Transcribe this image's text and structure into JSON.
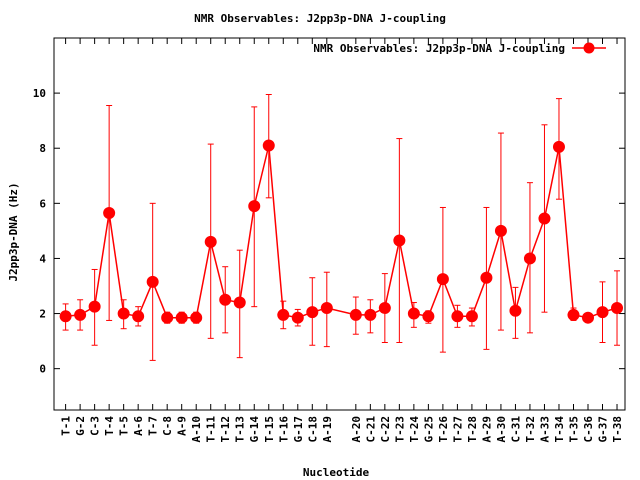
{
  "chart_data": {
    "type": "line",
    "title": "NMR Observables: J2pp3p-DNA J-coupling",
    "xlabel": "Nucleotide",
    "ylabel": "J2pp3p-DNA (Hz)",
    "ylim": [
      -1.5,
      12
    ],
    "yticks": [
      0,
      2,
      4,
      6,
      8,
      10
    ],
    "grid": false,
    "legend_position": "top-right",
    "colors": {
      "series": "#ff0000"
    },
    "series": [
      {
        "name": "NMR Observables: J2pp3p-DNA J-coupling",
        "points": [
          {
            "x": 1,
            "label": "T-1",
            "y": 1.9,
            "err": [
              1.4,
              2.35
            ]
          },
          {
            "x": 2,
            "label": "G-2",
            "y": 1.95,
            "err": [
              1.4,
              2.5
            ]
          },
          {
            "x": 3,
            "label": "C-3",
            "y": 2.25,
            "err": [
              0.85,
              3.6
            ]
          },
          {
            "x": 4,
            "label": "T-4",
            "y": 5.65,
            "err": [
              1.75,
              9.55
            ]
          },
          {
            "x": 5,
            "label": "T-5",
            "y": 2.0,
            "err": [
              1.45,
              2.5
            ]
          },
          {
            "x": 6,
            "label": "A-6",
            "y": 1.9,
            "err": [
              1.55,
              2.25
            ]
          },
          {
            "x": 7,
            "label": "T-7",
            "y": 3.15,
            "err": [
              0.3,
              6.0
            ]
          },
          {
            "x": 8,
            "label": "C-8",
            "y": 1.85,
            "err": [
              1.65,
              2.05
            ]
          },
          {
            "x": 9,
            "label": "A-9",
            "y": 1.85,
            "err": [
              1.65,
              2.05
            ]
          },
          {
            "x": 10,
            "label": "A-10",
            "y": 1.85,
            "err": [
              1.65,
              2.05
            ]
          },
          {
            "x": 11,
            "label": "T-11",
            "y": 4.6,
            "err": [
              1.1,
              8.15
            ]
          },
          {
            "x": 12,
            "label": "T-12",
            "y": 2.5,
            "err": [
              1.3,
              3.7
            ]
          },
          {
            "x": 13,
            "label": "T-13",
            "y": 2.4,
            "err": [
              0.4,
              4.3
            ]
          },
          {
            "x": 14,
            "label": "G-14",
            "y": 5.9,
            "err": [
              2.25,
              9.5
            ]
          },
          {
            "x": 15,
            "label": "T-15",
            "y": 8.1,
            "err": [
              6.2,
              9.95
            ]
          },
          {
            "x": 16,
            "label": "T-16",
            "y": 1.95,
            "err": [
              1.45,
              2.45
            ]
          },
          {
            "x": 17,
            "label": "G-17",
            "y": 1.85,
            "err": [
              1.55,
              2.15
            ]
          },
          {
            "x": 18,
            "label": "C-18",
            "y": 2.05,
            "err": [
              0.85,
              3.3
            ]
          },
          {
            "x": 19,
            "label": "A-19",
            "y": 2.2,
            "err": [
              0.8,
              3.5
            ]
          },
          {
            "x": 21,
            "label": "A-20",
            "y": 1.95,
            "err": [
              1.25,
              2.6
            ]
          },
          {
            "x": 22,
            "label": "C-21",
            "y": 1.95,
            "err": [
              1.3,
              2.5
            ]
          },
          {
            "x": 23,
            "label": "C-22",
            "y": 2.2,
            "err": [
              0.95,
              3.45
            ]
          },
          {
            "x": 24,
            "label": "T-23",
            "y": 4.65,
            "err": [
              0.95,
              8.35
            ]
          },
          {
            "x": 25,
            "label": "T-24",
            "y": 2.0,
            "err": [
              1.5,
              2.4
            ]
          },
          {
            "x": 26,
            "label": "G-25",
            "y": 1.9,
            "err": [
              1.65,
              2.1
            ]
          },
          {
            "x": 27,
            "label": "T-26",
            "y": 3.25,
            "err": [
              0.6,
              5.85
            ]
          },
          {
            "x": 28,
            "label": "T-27",
            "y": 1.9,
            "err": [
              1.5,
              2.3
            ]
          },
          {
            "x": 29,
            "label": "T-28",
            "y": 1.9,
            "err": [
              1.55,
              2.2
            ]
          },
          {
            "x": 30,
            "label": "A-29",
            "y": 3.3,
            "err": [
              0.7,
              5.85
            ]
          },
          {
            "x": 31,
            "label": "A-30",
            "y": 5.0,
            "err": [
              1.4,
              8.55
            ]
          },
          {
            "x": 32,
            "label": "C-31",
            "y": 2.1,
            "err": [
              1.1,
              2.95
            ]
          },
          {
            "x": 33,
            "label": "T-32",
            "y": 4.0,
            "err": [
              1.3,
              6.75
            ]
          },
          {
            "x": 34,
            "label": "A-33",
            "y": 5.45,
            "err": [
              2.05,
              8.85
            ]
          },
          {
            "x": 35,
            "label": "T-34",
            "y": 8.05,
            "err": [
              6.15,
              9.8
            ]
          },
          {
            "x": 36,
            "label": "T-35",
            "y": 1.95,
            "err": [
              1.75,
              2.2
            ]
          },
          {
            "x": 37,
            "label": "C-36",
            "y": 1.85,
            "err": [
              1.75,
              1.95
            ]
          },
          {
            "x": 38,
            "label": "G-37",
            "y": 2.05,
            "err": [
              0.95,
              3.15
            ]
          },
          {
            "x": 39,
            "label": "T-38",
            "y": 2.2,
            "err": [
              0.85,
              3.55
            ]
          }
        ]
      }
    ]
  }
}
